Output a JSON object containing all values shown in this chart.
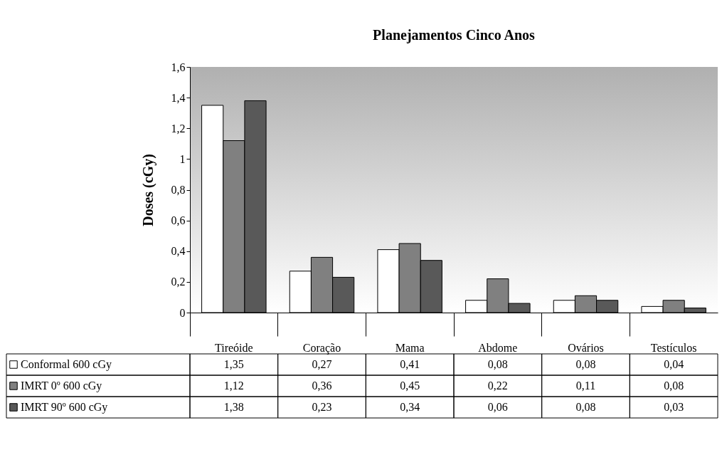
{
  "chart_data": {
    "type": "bar",
    "title": "Planejamentos Cinco Anos",
    "ylabel": "Doses (cGy)",
    "categories": [
      "Tireóide",
      "Coração",
      "Mama",
      "Abdome",
      "Ovários",
      "Testículos"
    ],
    "series": [
      {
        "name": "Conformal 600 cGy",
        "color": "#ffffff",
        "values": [
          1.35,
          0.27,
          0.41,
          0.08,
          0.08,
          0.04
        ],
        "value_labels": [
          "1,35",
          "0,27",
          "0,41",
          "0,08",
          "0,08",
          "0,04"
        ]
      },
      {
        "name": "IMRT 0º 600 cGy",
        "color": "#808080",
        "values": [
          1.12,
          0.36,
          0.45,
          0.22,
          0.11,
          0.08
        ],
        "value_labels": [
          "1,12",
          "0,36",
          "0,45",
          "0,22",
          "0,11",
          "0,08"
        ]
      },
      {
        "name": "IMRT 90º 600 cGy",
        "color": "#595959",
        "values": [
          1.38,
          0.23,
          0.34,
          0.06,
          0.08,
          0.03
        ],
        "value_labels": [
          "1,38",
          "0,23",
          "0,34",
          "0,06",
          "0,08",
          "0,03"
        ]
      }
    ],
    "ylim": [
      0,
      1.6
    ],
    "yticks": [
      0,
      {
        "value": 0.2,
        "label": "0,2"
      },
      {
        "value": 0.4,
        "label": "0,4"
      },
      {
        "value": 0.6,
        "label": "0,6"
      },
      {
        "value": 0.8,
        "label": "0,8"
      },
      1,
      {
        "value": 1.2,
        "label": "1,2"
      },
      {
        "value": 1.4,
        "label": "1,4"
      },
      {
        "value": 1.6,
        "label": "1,6"
      }
    ],
    "grid": false,
    "legend": "bottom left"
  }
}
